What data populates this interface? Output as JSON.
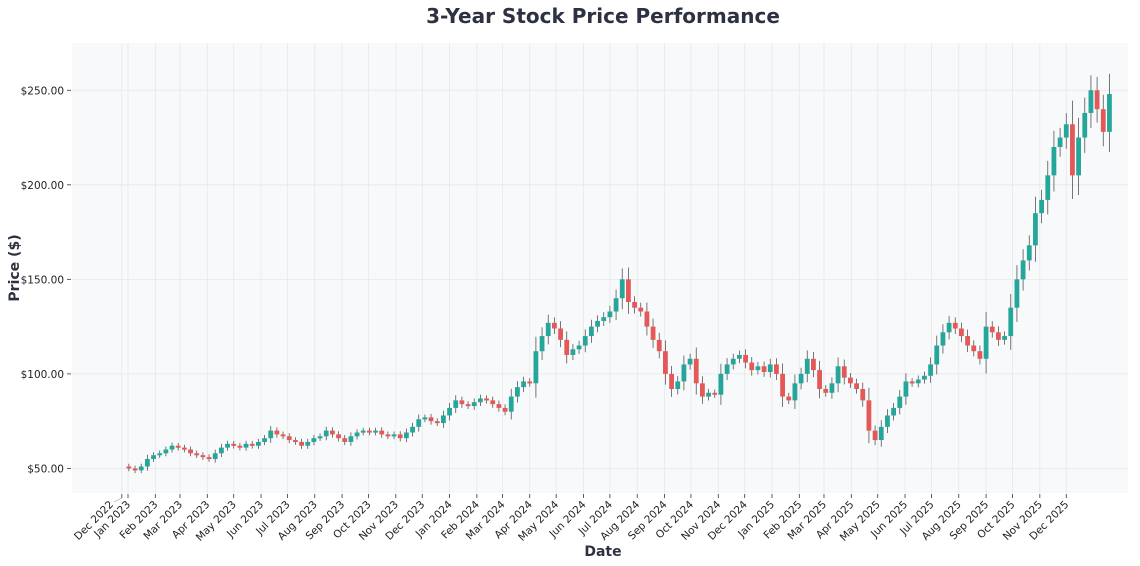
{
  "chart_data": {
    "type": "candlestick",
    "title": "3-Year Stock Price Performance",
    "xlabel": "Date",
    "ylabel": "Price ($)",
    "ylim": [
      37,
      275
    ],
    "grid": true,
    "colors": {
      "up": "#26a69a",
      "down": "#e45858",
      "plot_bg": "#f8f9fa",
      "title": "#2d3142"
    },
    "y_ticks": [
      {
        "value": 50,
        "label": "$50.00"
      },
      {
        "value": 100,
        "label": "$100.00"
      },
      {
        "value": 150,
        "label": "$150.00"
      },
      {
        "value": 200,
        "label": "$200.00"
      },
      {
        "value": 250,
        "label": "$250.00"
      }
    ],
    "x_ticks": [
      {
        "date": "2022-12-25",
        "label": "Dec 2022"
      },
      {
        "date": "2023-01-01",
        "label": "Jan 2023"
      },
      {
        "date": "2023-02-01",
        "label": "Feb 2023"
      },
      {
        "date": "2023-03-01",
        "label": "Mar 2023"
      },
      {
        "date": "2023-04-01",
        "label": "Apr 2023"
      },
      {
        "date": "2023-05-01",
        "label": "May 2023"
      },
      {
        "date": "2023-06-01",
        "label": "Jun 2023"
      },
      {
        "date": "2023-07-01",
        "label": "Jul 2023"
      },
      {
        "date": "2023-08-01",
        "label": "Aug 2023"
      },
      {
        "date": "2023-09-01",
        "label": "Sep 2023"
      },
      {
        "date": "2023-10-01",
        "label": "Oct 2023"
      },
      {
        "date": "2023-11-01",
        "label": "Nov 2023"
      },
      {
        "date": "2023-12-01",
        "label": "Dec 2023"
      },
      {
        "date": "2024-01-01",
        "label": "Jan 2024"
      },
      {
        "date": "2024-02-01",
        "label": "Feb 2024"
      },
      {
        "date": "2024-03-01",
        "label": "Mar 2024"
      },
      {
        "date": "2024-04-01",
        "label": "Apr 2024"
      },
      {
        "date": "2024-05-01",
        "label": "May 2024"
      },
      {
        "date": "2024-06-01",
        "label": "Jun 2024"
      },
      {
        "date": "2024-07-01",
        "label": "Jul 2024"
      },
      {
        "date": "2024-08-01",
        "label": "Aug 2024"
      },
      {
        "date": "2024-09-01",
        "label": "Sep 2024"
      },
      {
        "date": "2024-10-01",
        "label": "Oct 2024"
      },
      {
        "date": "2024-11-01",
        "label": "Nov 2024"
      },
      {
        "date": "2024-12-01",
        "label": "Dec 2024"
      },
      {
        "date": "2025-01-01",
        "label": "Jan 2025"
      },
      {
        "date": "2025-02-01",
        "label": "Feb 2025"
      },
      {
        "date": "2025-03-01",
        "label": "Mar 2025"
      },
      {
        "date": "2025-04-01",
        "label": "Apr 2025"
      },
      {
        "date": "2025-05-01",
        "label": "May 2025"
      },
      {
        "date": "2025-06-01",
        "label": "Jun 2025"
      },
      {
        "date": "2025-07-01",
        "label": "Jul 2025"
      },
      {
        "date": "2025-08-01",
        "label": "Aug 2025"
      },
      {
        "date": "2025-09-01",
        "label": "Sep 2025"
      },
      {
        "date": "2025-10-01",
        "label": "Oct 2025"
      },
      {
        "date": "2025-11-01",
        "label": "Nov 2025"
      },
      {
        "date": "2025-12-01",
        "label": "Dec 2025"
      }
    ],
    "series": {
      "start_date": "2023-01-02",
      "interval": "weekly",
      "open_first": 51,
      "close": [
        50,
        49,
        51,
        55,
        57,
        58,
        60,
        62,
        61,
        60,
        58,
        57,
        56,
        55,
        58,
        61,
        63,
        62,
        61,
        63,
        62,
        64,
        66,
        70,
        68,
        67,
        65,
        64,
        62,
        64,
        66,
        67,
        70,
        68,
        66,
        64,
        67,
        69,
        70,
        69,
        70,
        68,
        67,
        68,
        66,
        69,
        72,
        76,
        77,
        75,
        74,
        78,
        82,
        86,
        84,
        83,
        85,
        87,
        86,
        84,
        82,
        80,
        88,
        93,
        96,
        95,
        112,
        120,
        127,
        124,
        118,
        110,
        113,
        115,
        120,
        125,
        128,
        130,
        133,
        140,
        150,
        138,
        135,
        133,
        125,
        118,
        112,
        100,
        92,
        96,
        105,
        108,
        95,
        88,
        90,
        89,
        100,
        105,
        108,
        110,
        106,
        102,
        104,
        101,
        105,
        100,
        88,
        86,
        95,
        100,
        108,
        102,
        92,
        90,
        95,
        104,
        98,
        95,
        92,
        86,
        70,
        65,
        72,
        78,
        82,
        88,
        96,
        95,
        97,
        99,
        105,
        115,
        122,
        127,
        124,
        120,
        115,
        112,
        108,
        125,
        122,
        118,
        120,
        135,
        150,
        160,
        168,
        185,
        192,
        205,
        220,
        225,
        232,
        205,
        225,
        238,
        250,
        240,
        228,
        248
      ]
    }
  }
}
